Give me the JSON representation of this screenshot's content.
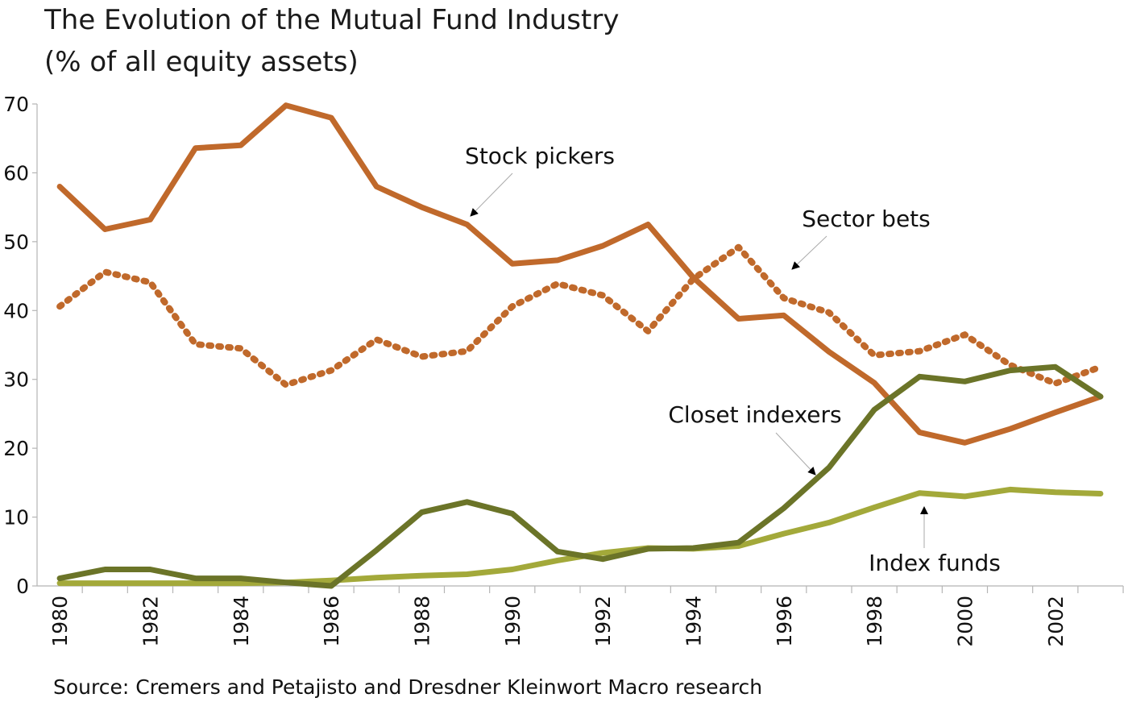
{
  "chart_data": {
    "type": "line",
    "title": "The Evolution of the Mutual Fund Industry",
    "subtitle": "(% of all equity assets)",
    "xlabel": "",
    "ylabel": "",
    "ylim": [
      0,
      70
    ],
    "yticks": [
      "0",
      "10",
      "20",
      "30",
      "40",
      "50",
      "60",
      "70"
    ],
    "x": [
      1980,
      1981,
      1982,
      1983,
      1984,
      1985,
      1986,
      1987,
      1988,
      1989,
      1990,
      1991,
      1992,
      1993,
      1994,
      1995,
      1996,
      1997,
      1998,
      1999,
      2000,
      2001,
      2002,
      2003
    ],
    "xtick_labels": [
      "1980",
      "1982",
      "1984",
      "1986",
      "1988",
      "1990",
      "1992",
      "1994",
      "1996",
      "1998",
      "2000",
      "2002"
    ],
    "grid": false,
    "legend": "none",
    "series": [
      {
        "name": "Stock pickers",
        "color": "#C0692B",
        "style": "solid",
        "values": [
          58,
          51.8,
          53.2,
          63.6,
          64,
          69.8,
          68,
          58,
          55,
          52.5,
          46.8,
          47.3,
          49.4,
          52.5,
          44.8,
          38.8,
          39.3,
          34,
          29.5,
          22.3,
          20.8,
          22.8,
          25.2,
          27.5
        ]
      },
      {
        "name": "Sector bets",
        "color": "#C0692B",
        "style": "dotted",
        "values": [
          40.6,
          45.6,
          44.1,
          35.1,
          34.5,
          29.2,
          31.3,
          35.8,
          33.3,
          34.1,
          40.6,
          43.9,
          42.2,
          37,
          44.6,
          49.2,
          41.8,
          39.7,
          33.5,
          34.1,
          36.5,
          32.1,
          29.4,
          31.8
        ]
      },
      {
        "name": "Closet indexers",
        "color": "#6B7428",
        "style": "solid",
        "values": [
          1.1,
          2.4,
          2.4,
          1.1,
          1.1,
          0.5,
          0,
          5.2,
          10.7,
          12.2,
          10.5,
          5,
          3.9,
          5.4,
          5.5,
          6.3,
          11.3,
          17.2,
          25.6,
          30.4,
          29.7,
          31.3,
          31.8,
          27.5
        ]
      },
      {
        "name": "Index funds",
        "color": "#A3A93A",
        "style": "solid",
        "values": [
          0.4,
          0.4,
          0.4,
          0.4,
          0.4,
          0.5,
          0.8,
          1.2,
          1.5,
          1.7,
          2.4,
          3.7,
          4.8,
          5.5,
          5.4,
          5.8,
          7.6,
          9.2,
          11.4,
          13.5,
          13,
          14,
          13.6,
          13.4
        ]
      }
    ],
    "annotations": [
      {
        "text": "Stock pickers",
        "series": "Stock pickers",
        "point_year": 1989
      },
      {
        "text": "Sector bets",
        "series": "Sector bets",
        "point_year": 1996
      },
      {
        "text": "Closet indexers",
        "series": "Closet indexers",
        "point_year": 1997
      },
      {
        "text": "Index funds",
        "series": "Index funds",
        "point_year": 1999
      }
    ],
    "source": "Source: Cremers and Petajisto and Dresdner Kleinwort Macro research"
  }
}
